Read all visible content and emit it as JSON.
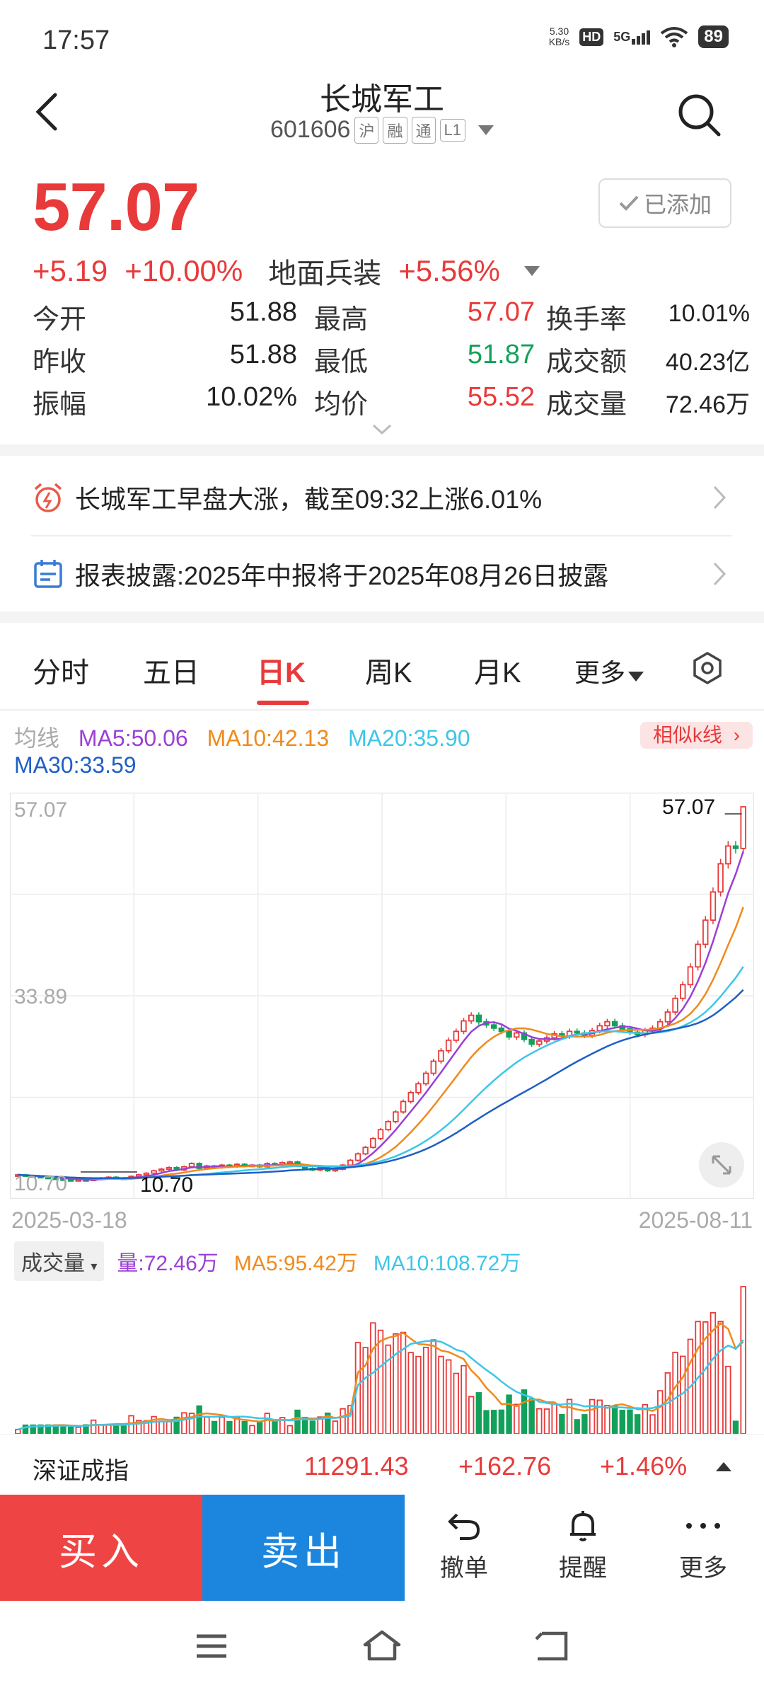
{
  "status_bar": {
    "time": "17:57",
    "net_speed_value": "5.30",
    "net_speed_unit": "KB/s",
    "hd": "HD",
    "signal": "5G",
    "battery": "89"
  },
  "header": {
    "title": "长城军工",
    "code": "601606",
    "tags": [
      "沪",
      "融",
      "通",
      "L1"
    ]
  },
  "quote": {
    "price": "57.07",
    "change": "+5.19",
    "change_pct": "+10.00%",
    "sector": "地面兵装",
    "sector_pct": "+5.56%",
    "watch_label": "已添加"
  },
  "stats": [
    {
      "l1": "今开",
      "v1": "51.88",
      "l2": "最高",
      "v2": "57.07",
      "c2": "red",
      "l3": "换手率",
      "v3": "10.01%"
    },
    {
      "l1": "昨收",
      "v1": "51.88",
      "l2": "最低",
      "v2": "51.87",
      "c2": "green",
      "l3": "成交额",
      "v3": "40.23亿"
    },
    {
      "l1": "振幅",
      "v1": "10.02%",
      "l2": "均价",
      "v2": "55.52",
      "c2": "red",
      "l3": "成交量",
      "v3": "72.46万"
    }
  ],
  "news": [
    {
      "text": "长城军工早盘大涨，截至09:32上涨6.01%"
    },
    {
      "text": "报表披露:2025年中报将于2025年08月26日披露"
    }
  ],
  "tabs": [
    "分时",
    "五日",
    "日K",
    "周K",
    "月K",
    "更多"
  ],
  "ma_legend": {
    "label": "均线",
    "ma5": "MA5:50.06",
    "ma10": "MA10:42.13",
    "ma20": "MA20:35.90",
    "ma30": "MA30:33.59",
    "similar": "相似k线"
  },
  "chart": {
    "y_top": "57.07",
    "y_mid": "33.89",
    "y_bot": "10.70",
    "max_label": "57.07",
    "min_label": "10.70",
    "date_start": "2025-03-18",
    "date_end": "2025-08-11"
  },
  "volume": {
    "selector": "成交量",
    "vol": "量:72.46万",
    "ma5": "MA5:95.42万",
    "ma10": "MA10:108.72万"
  },
  "index_bar": {
    "name": "深证成指",
    "value": "11291.43",
    "change": "+162.76",
    "pct": "+1.46%"
  },
  "actions": {
    "buy": "买入",
    "sell": "卖出",
    "cancel": "撤单",
    "alert": "提醒",
    "more": "更多"
  },
  "colors": {
    "up": "#e83a3a",
    "down": "#12a15a",
    "ma5": "#9b3fd6",
    "ma10": "#f08a1c",
    "ma20": "#3ec6e8",
    "ma30": "#1f5fc4"
  },
  "chart_data": {
    "type": "candlestick",
    "x_range": [
      "2025-03-18",
      "2025-08-11"
    ],
    "ylim": [
      10.7,
      57.07
    ],
    "last_close": 57.07,
    "ma": {
      "MA5": 50.06,
      "MA10": 42.13,
      "MA20": 35.9,
      "MA30": 33.59
    },
    "closes": [
      11.4,
      11.3,
      11.2,
      11.1,
      11.0,
      10.9,
      10.8,
      10.75,
      10.8,
      10.7,
      10.9,
      11.0,
      11.1,
      11.0,
      10.9,
      11.2,
      11.4,
      11.6,
      11.9,
      12.1,
      12.3,
      12.0,
      12.4,
      12.8,
      12.2,
      12.5,
      12.3,
      12.6,
      12.4,
      12.7,
      12.5,
      12.6,
      12.4,
      12.8,
      12.6,
      12.9,
      13.0,
      12.5,
      12.2,
      12.0,
      12.3,
      11.9,
      12.1,
      12.6,
      13.2,
      14.0,
      14.8,
      15.9,
      17.0,
      18.0,
      19.2,
      20.5,
      21.6,
      22.7,
      24.0,
      25.5,
      26.8,
      28.1,
      29.2,
      30.5,
      31.2,
      30.4,
      30.0,
      29.6,
      29.2,
      28.5,
      29.0,
      28.2,
      27.6,
      28.0,
      28.4,
      28.9,
      28.6,
      29.2,
      29.0,
      28.7,
      29.3,
      29.9,
      30.4,
      29.9,
      29.5,
      29.1,
      28.8,
      29.3,
      29.6,
      30.4,
      31.6,
      33.3,
      35.0,
      37.2,
      40.0,
      43.0,
      46.5,
      50.0,
      52.2,
      51.9,
      57.07
    ],
    "volume": {
      "last": "72.46万",
      "ma5": "95.42万",
      "ma10": "108.72万"
    }
  }
}
